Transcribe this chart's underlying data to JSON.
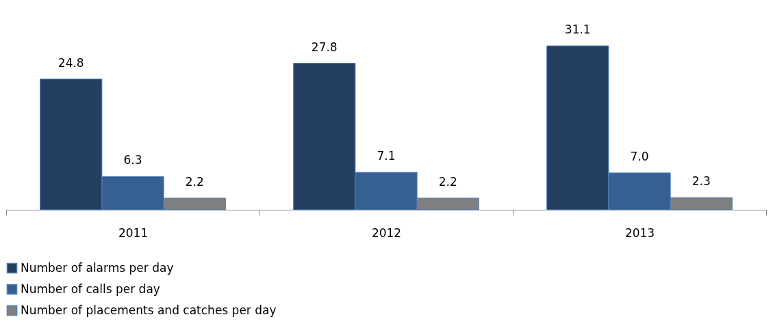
{
  "chart_data": {
    "type": "bar",
    "categories": [
      "2011",
      "2012",
      "2013"
    ],
    "series": [
      {
        "name": "Number of alarms per day",
        "color": "#243f60",
        "values": [
          24.8,
          27.8,
          31.1
        ],
        "value_labels": [
          "24.8",
          "27.8",
          "31.1"
        ]
      },
      {
        "name": "Number of calls per day",
        "color": "#376092",
        "values": [
          6.3,
          7.1,
          7.0
        ],
        "value_labels": [
          "6.3",
          "7.1",
          "7.0"
        ]
      },
      {
        "name": "Number of placements and catches per day",
        "color": "#7f7f7f",
        "values": [
          2.2,
          2.2,
          2.3
        ],
        "value_labels": [
          "2.2",
          "2.2",
          "2.3"
        ]
      }
    ],
    "tick_labels": "x",
    "grid": false,
    "legend": "bottom"
  }
}
